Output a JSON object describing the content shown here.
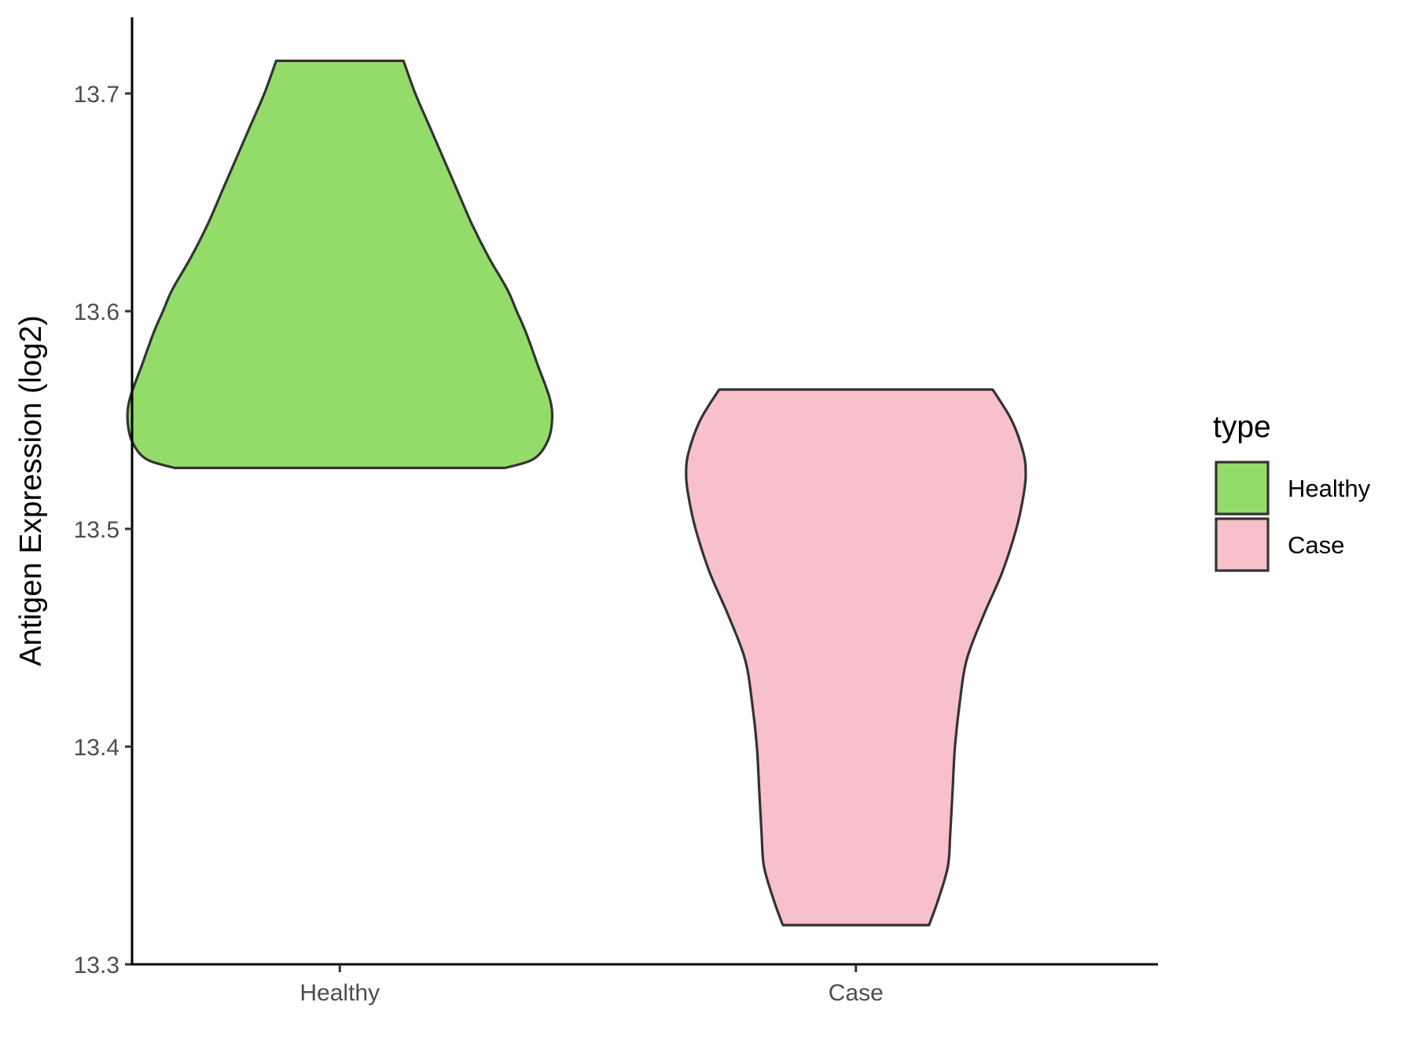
{
  "chart_data": {
    "type": "violin",
    "title": "",
    "xlabel": "",
    "ylabel": "Antigen Expression (log2)",
    "ylim": [
      13.3,
      13.735
    ],
    "yticks": [
      13.3,
      13.4,
      13.5,
      13.6,
      13.7
    ],
    "ytick_labels": [
      "13.3",
      "13.4",
      "13.5",
      "13.6",
      "13.7"
    ],
    "categories": [
      "Healthy",
      "Case"
    ],
    "grid": false,
    "legend": {
      "title": "type",
      "placement": "right",
      "entries": [
        "Healthy",
        "Case"
      ]
    },
    "series": [
      {
        "name": "Healthy",
        "color": "#93dc6a",
        "min": 13.528,
        "max": 13.715,
        "density_profile": [
          [
            13.528,
            0.7
          ],
          [
            13.532,
            0.82
          ],
          [
            13.54,
            0.88
          ],
          [
            13.55,
            0.9
          ],
          [
            13.56,
            0.89
          ],
          [
            13.575,
            0.84
          ],
          [
            13.59,
            0.79
          ],
          [
            13.6,
            0.75
          ],
          [
            13.61,
            0.71
          ],
          [
            13.625,
            0.63
          ],
          [
            13.64,
            0.56
          ],
          [
            13.655,
            0.5
          ],
          [
            13.67,
            0.44
          ],
          [
            13.685,
            0.38
          ],
          [
            13.7,
            0.32
          ],
          [
            13.715,
            0.27
          ]
        ]
      },
      {
        "name": "Case",
        "color": "#f8c0cb",
        "min": 13.318,
        "max": 13.564,
        "density_profile": [
          [
            13.318,
            0.31
          ],
          [
            13.33,
            0.35
          ],
          [
            13.345,
            0.39
          ],
          [
            13.36,
            0.4
          ],
          [
            13.38,
            0.41
          ],
          [
            13.4,
            0.42
          ],
          [
            13.42,
            0.44
          ],
          [
            13.44,
            0.47
          ],
          [
            13.46,
            0.54
          ],
          [
            13.48,
            0.62
          ],
          [
            13.5,
            0.68
          ],
          [
            13.515,
            0.71
          ],
          [
            13.525,
            0.72
          ],
          [
            13.535,
            0.71
          ],
          [
            13.55,
            0.66
          ],
          [
            13.564,
            0.58
          ]
        ]
      }
    ]
  }
}
